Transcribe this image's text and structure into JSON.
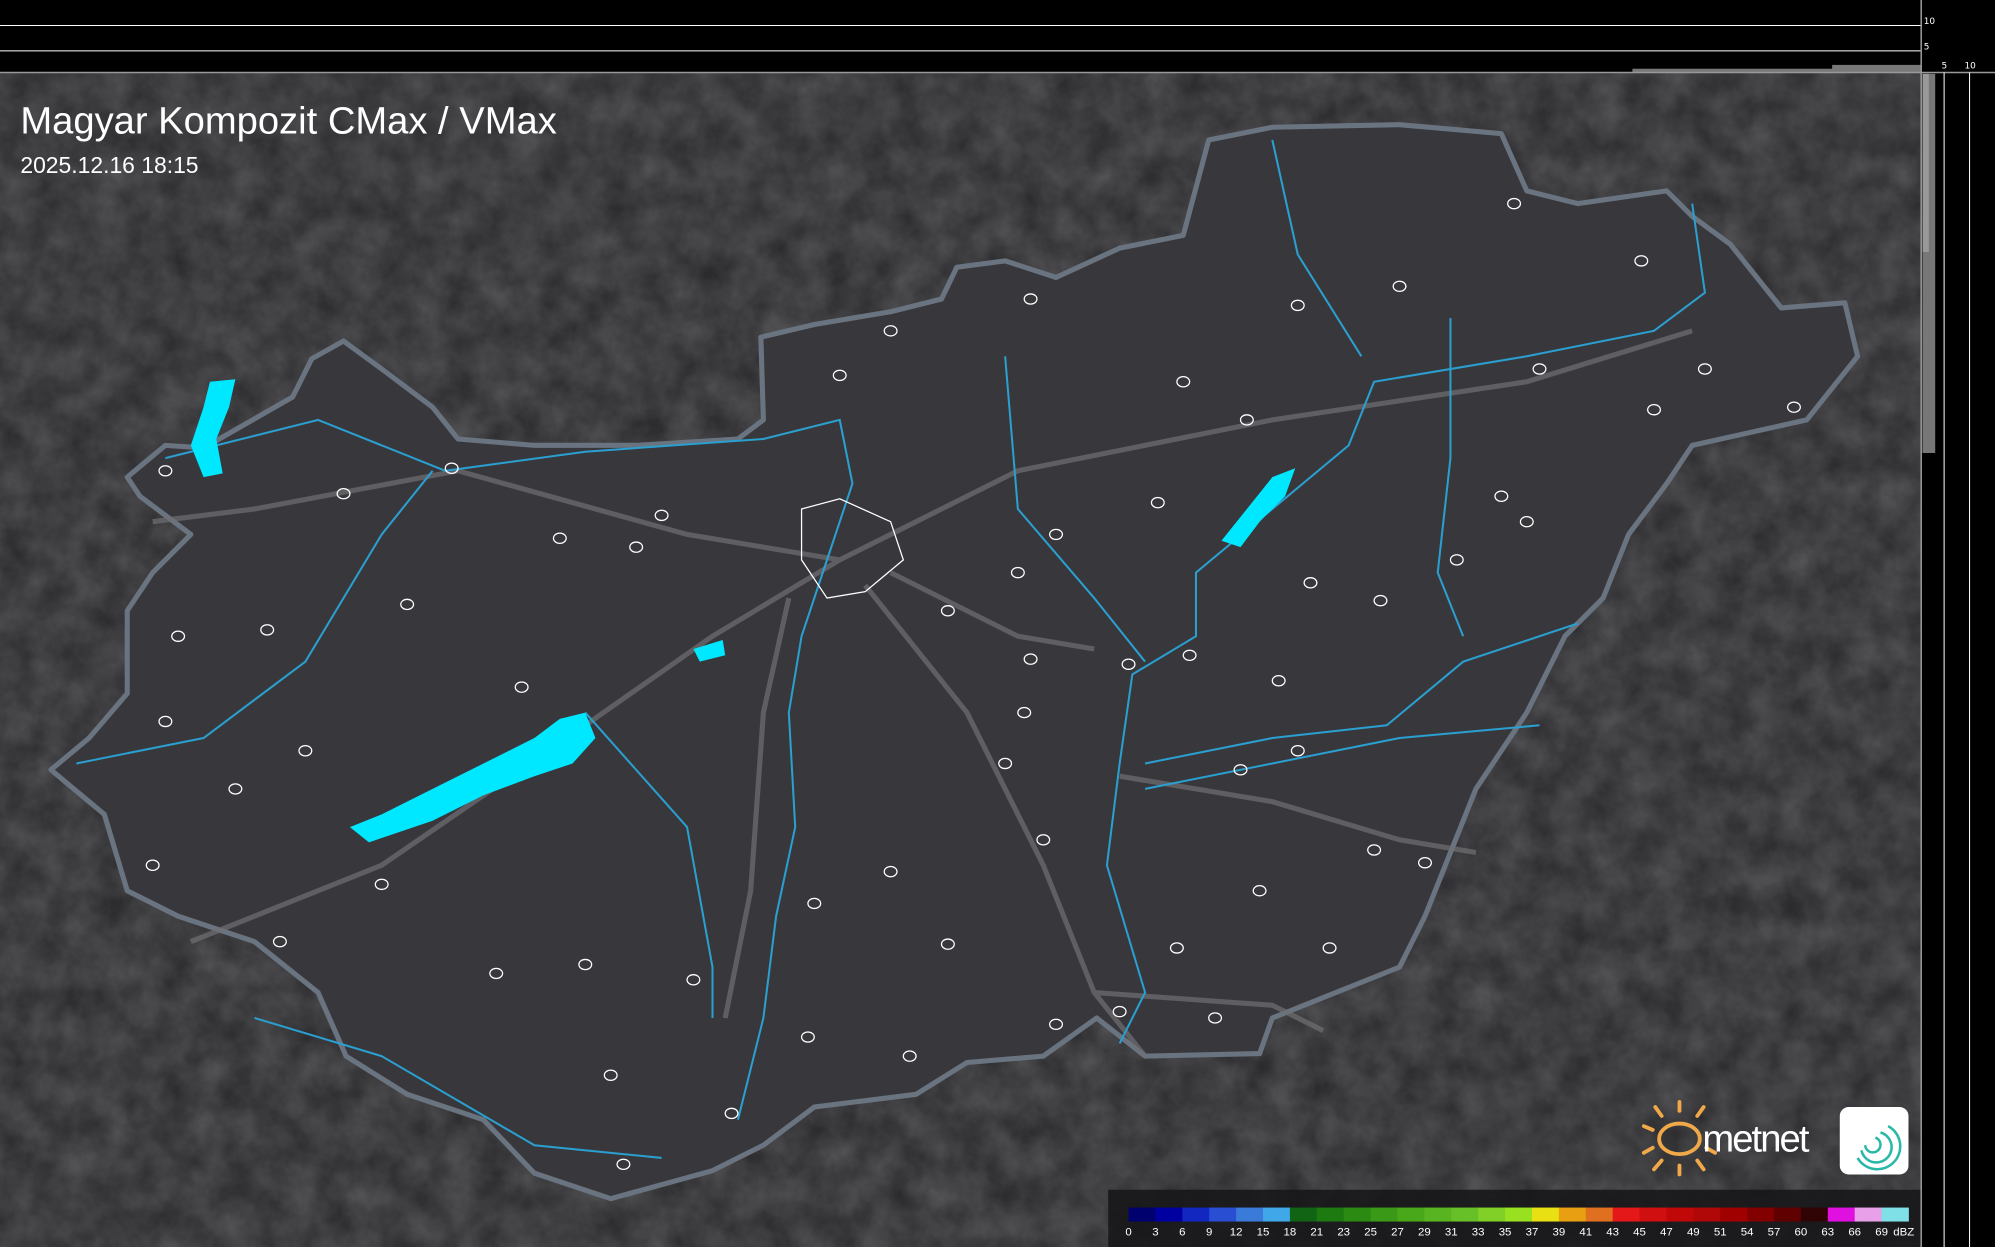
{
  "header": {
    "title": "Magyar Kompozit CMax / VMax",
    "timestamp": "2025.12.16 18:15"
  },
  "profile_axes": {
    "top_ticks": [
      "10",
      "5"
    ],
    "side_ticks": [
      "5",
      "10"
    ]
  },
  "logo": {
    "brand_text": "metnet"
  },
  "legend": {
    "unit": "dBZ",
    "labels": [
      "0",
      "3",
      "6",
      "9",
      "12",
      "15",
      "18",
      "21",
      "23",
      "25",
      "27",
      "29",
      "31",
      "33",
      "35",
      "37",
      "39",
      "41",
      "43",
      "45",
      "47",
      "49",
      "51",
      "54",
      "57",
      "60",
      "63",
      "66",
      "69"
    ],
    "colors": [
      "#00006e",
      "#0000a0",
      "#1226c0",
      "#2a4ed2",
      "#3a7ad8",
      "#40a8e8",
      "#116414",
      "#1c7a10",
      "#2a8a12",
      "#3a9a18",
      "#48a81a",
      "#58b420",
      "#68c028",
      "#80d028",
      "#98e020",
      "#e8e012",
      "#e8a012",
      "#e07020",
      "#e41818",
      "#d01010",
      "#c00808",
      "#b00808",
      "#a00000",
      "#820000",
      "#600000",
      "#300404",
      "#e010e0",
      "#e8a0e8",
      "#80e0e8"
    ]
  },
  "map_colors": {
    "background": "#2b2b2e",
    "country_fill": "#38383c",
    "border": "#6a7480",
    "rivers": "#2a9fd0",
    "lakes": "#00e8ff",
    "roads": "#707074"
  }
}
